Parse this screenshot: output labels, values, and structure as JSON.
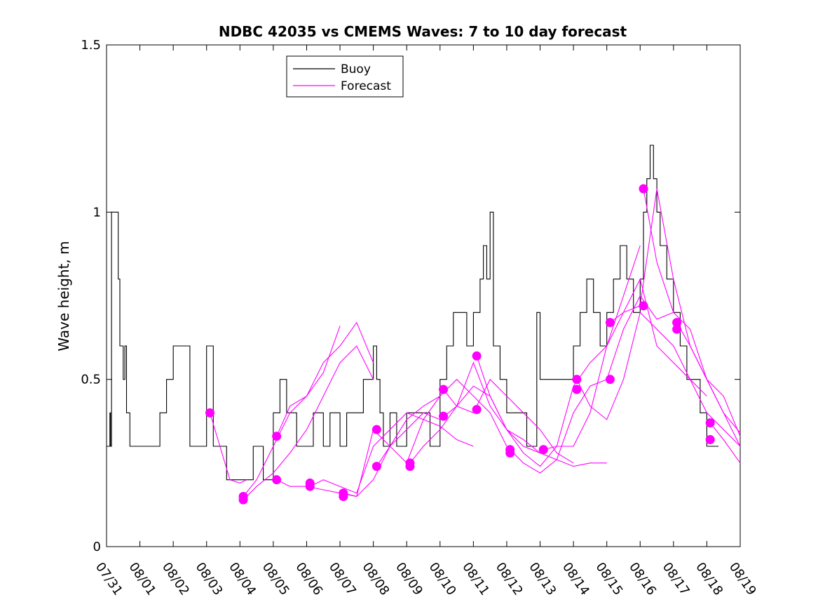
{
  "chart_data": {
    "type": "line",
    "title": "NDBC 42035 vs CMEMS Waves: 7 to 10 day forecast",
    "xlabel": "",
    "ylabel": "Wave height, m",
    "xlim": [
      0,
      19
    ],
    "ylim": [
      0,
      1.5
    ],
    "x_tick_labels": [
      "07/31",
      "08/01",
      "08/02",
      "08/03",
      "08/04",
      "08/05",
      "08/06",
      "08/07",
      "08/08",
      "08/09",
      "08/10",
      "08/11",
      "08/12",
      "08/13",
      "08/14",
      "08/15",
      "08/16",
      "08/17",
      "08/18",
      "08/19"
    ],
    "y_ticks": [
      0,
      0.5,
      1,
      1.5
    ],
    "y_tick_labels": [
      "0",
      "0.5",
      "1",
      "1.5"
    ],
    "legend": {
      "location": "top-center",
      "entries": [
        {
          "name": "Buoy",
          "color": "#000000"
        },
        {
          "name": "Forecast",
          "color": "#ff00ff"
        }
      ]
    },
    "series": [
      {
        "name": "Buoy",
        "color": "#000000",
        "x": [
          0.0,
          0.08,
          0.1,
          0.12,
          0.15,
          0.3,
          0.35,
          0.4,
          0.45,
          0.5,
          0.55,
          0.6,
          0.65,
          0.7,
          0.75,
          0.8,
          0.9,
          1.0,
          1.5,
          1.6,
          1.8,
          2.0,
          2.5,
          2.7,
          2.85,
          3.0,
          3.2,
          3.4,
          3.6,
          4.0,
          4.2,
          4.4,
          4.7,
          4.9,
          5.0,
          5.2,
          5.4,
          5.7,
          6.0,
          6.2,
          6.5,
          6.7,
          6.9,
          7.0,
          7.2,
          7.5,
          7.7,
          7.9,
          8.0,
          8.1,
          8.2,
          8.3,
          8.5,
          8.7,
          9.0,
          9.3,
          9.5,
          9.7,
          9.9,
          10.0,
          10.2,
          10.4,
          10.6,
          10.8,
          11.0,
          11.2,
          11.3,
          11.4,
          11.5,
          11.6,
          11.7,
          11.8,
          12.0,
          12.3,
          12.6,
          12.8,
          12.9,
          13.0,
          13.3,
          13.5,
          13.8,
          14.0,
          14.2,
          14.4,
          14.6,
          14.8,
          15.0,
          15.2,
          15.4,
          15.6,
          15.8,
          16.0,
          16.1,
          16.2,
          16.3,
          16.4,
          16.5,
          16.6,
          16.8,
          17.0,
          17.2,
          17.4,
          17.6,
          17.8,
          18.0,
          18.2
        ],
        "y": [
          0.3,
          0.3,
          0.4,
          0.3,
          1.0,
          1.0,
          0.8,
          0.6,
          0.6,
          0.5,
          0.6,
          0.4,
          0.4,
          0.3,
          0.3,
          0.3,
          0.3,
          0.3,
          0.3,
          0.4,
          0.5,
          0.6,
          0.3,
          0.3,
          0.3,
          0.6,
          0.3,
          0.3,
          0.2,
          0.2,
          0.2,
          0.3,
          0.2,
          0.2,
          0.4,
          0.5,
          0.4,
          0.3,
          0.3,
          0.4,
          0.3,
          0.4,
          0.4,
          0.3,
          0.4,
          0.4,
          0.5,
          0.5,
          0.6,
          0.5,
          0.4,
          0.3,
          0.4,
          0.3,
          0.4,
          0.4,
          0.4,
          0.3,
          0.3,
          0.5,
          0.6,
          0.7,
          0.7,
          0.6,
          0.7,
          0.8,
          0.9,
          0.8,
          1.0,
          0.6,
          0.6,
          0.5,
          0.4,
          0.4,
          0.3,
          0.3,
          0.7,
          0.5,
          0.5,
          0.5,
          0.5,
          0.6,
          0.7,
          0.8,
          0.7,
          0.6,
          0.7,
          0.8,
          0.9,
          0.8,
          0.7,
          0.8,
          1.0,
          1.1,
          1.2,
          1.1,
          1.0,
          0.9,
          0.8,
          0.7,
          0.6,
          0.5,
          0.5,
          0.4,
          0.3,
          0.3
        ]
      },
      {
        "name": "Forecast",
        "color": "#ff00ff",
        "x": [
          3.1,
          3.4,
          3.7,
          4.0,
          4.2
        ],
        "y": [
          0.4,
          0.3,
          0.2,
          0.19,
          0.2
        ]
      },
      {
        "name": "Forecast",
        "color": "#ff00ff",
        "x": [
          4.1,
          4.5,
          5.0,
          5.5,
          6.0,
          6.5,
          7.0,
          7.5,
          8.0
        ],
        "y": [
          0.15,
          0.2,
          0.3,
          0.4,
          0.45,
          0.55,
          0.6,
          0.67,
          0.55
        ]
      },
      {
        "name": "Forecast",
        "color": "#ff00ff",
        "x": [
          4.1,
          4.5,
          5.0,
          5.5,
          6.0,
          6.5,
          7.0,
          7.5,
          8.0
        ],
        "y": [
          0.14,
          0.18,
          0.22,
          0.28,
          0.35,
          0.45,
          0.55,
          0.6,
          0.5
        ]
      },
      {
        "name": "Forecast",
        "color": "#ff00ff",
        "x": [
          5.1,
          5.5,
          6.0,
          6.5,
          7.0
        ],
        "y": [
          0.33,
          0.42,
          0.45,
          0.52,
          0.66
        ]
      },
      {
        "name": "Forecast",
        "color": "#ff00ff",
        "x": [
          5.1,
          5.5,
          6.0,
          6.5,
          7.0,
          7.5,
          8.0,
          8.5,
          9.0,
          9.5,
          10.0
        ],
        "y": [
          0.2,
          0.18,
          0.18,
          0.17,
          0.16,
          0.15,
          0.2,
          0.3,
          0.38,
          0.42,
          0.45
        ]
      },
      {
        "name": "Forecast",
        "color": "#ff00ff",
        "x": [
          6.1,
          6.5,
          7.0,
          7.5,
          8.0,
          8.5,
          9.0,
          9.5,
          10.0,
          10.5,
          11.0
        ],
        "y": [
          0.18,
          0.2,
          0.18,
          0.16,
          0.3,
          0.35,
          0.4,
          0.38,
          0.36,
          0.32,
          0.3
        ]
      },
      {
        "name": "Forecast",
        "color": "#ff00ff",
        "x": [
          7.1,
          7.5,
          8.0,
          8.5,
          9.0,
          9.5,
          10.0,
          10.5,
          11.0,
          11.5,
          12.0
        ],
        "y": [
          0.16,
          0.15,
          0.35,
          0.3,
          0.25,
          0.38,
          0.45,
          0.5,
          0.45,
          0.4,
          0.3
        ]
      },
      {
        "name": "Forecast",
        "color": "#ff00ff",
        "x": [
          8.1,
          8.5,
          9.0,
          9.5,
          10.0,
          10.5,
          11.0,
          11.5,
          12.0,
          12.5,
          13.0
        ],
        "y": [
          0.24,
          0.3,
          0.35,
          0.4,
          0.38,
          0.42,
          0.48,
          0.45,
          0.35,
          0.3,
          0.28
        ]
      },
      {
        "name": "Forecast",
        "color": "#ff00ff",
        "x": [
          9.1,
          9.5,
          10.0,
          10.5,
          11.0,
          11.5,
          12.0,
          12.5,
          13.0,
          13.5,
          14.0
        ],
        "y": [
          0.25,
          0.3,
          0.35,
          0.42,
          0.4,
          0.5,
          0.45,
          0.4,
          0.35,
          0.28,
          0.25
        ]
      },
      {
        "name": "Forecast",
        "color": "#ff00ff",
        "x": [
          10.1,
          10.5,
          11.0,
          11.5,
          12.0,
          12.5,
          13.0,
          13.5,
          14.0,
          14.5,
          15.0
        ],
        "y": [
          0.47,
          0.42,
          0.55,
          0.42,
          0.35,
          0.32,
          0.28,
          0.26,
          0.24,
          0.25,
          0.25
        ]
      },
      {
        "name": "Forecast",
        "color": "#ff00ff",
        "x": [
          11.1,
          11.5,
          12.0,
          12.5,
          13.0,
          13.5,
          14.0,
          14.5,
          15.0,
          15.5,
          16.0
        ],
        "y": [
          0.57,
          0.45,
          0.35,
          0.28,
          0.24,
          0.3,
          0.48,
          0.55,
          0.6,
          0.75,
          0.9
        ]
      },
      {
        "name": "Forecast",
        "color": "#ff00ff",
        "x": [
          12.1,
          12.5,
          13.0,
          13.5,
          14.0,
          14.5,
          15.0,
          15.5,
          16.0,
          16.5,
          17.0
        ],
        "y": [
          0.29,
          0.25,
          0.22,
          0.26,
          0.4,
          0.48,
          0.5,
          0.65,
          0.75,
          0.68,
          0.7
        ]
      },
      {
        "name": "Forecast",
        "color": "#ff00ff",
        "x": [
          13.1,
          13.5,
          14.0,
          14.5,
          15.0,
          15.5,
          16.0,
          16.5,
          17.0,
          17.5,
          18.0
        ],
        "y": [
          0.29,
          0.3,
          0.3,
          0.4,
          0.6,
          0.7,
          0.8,
          0.6,
          0.55,
          0.5,
          0.45
        ]
      },
      {
        "name": "Forecast",
        "color": "#ff00ff",
        "x": [
          14.1,
          14.5,
          15.0,
          15.5,
          16.0,
          16.5,
          17.0,
          17.5,
          18.0,
          18.5,
          19.0
        ],
        "y": [
          0.5,
          0.42,
          0.38,
          0.5,
          0.7,
          0.65,
          0.6,
          0.5,
          0.4,
          0.35,
          0.3
        ]
      },
      {
        "name": "Forecast",
        "color": "#ff00ff",
        "x": [
          15.1,
          15.5,
          16.0,
          16.5,
          17.0,
          17.5,
          18.0,
          18.5,
          19.0
        ],
        "y": [
          0.67,
          0.7,
          0.72,
          1.07,
          0.8,
          0.6,
          0.5,
          0.4,
          0.34
        ]
      },
      {
        "name": "Forecast",
        "color": "#ff00ff",
        "x": [
          16.1,
          16.5,
          17.0,
          17.5,
          18.0,
          18.5,
          19.0
        ],
        "y": [
          1.07,
          0.85,
          0.7,
          0.65,
          0.5,
          0.45,
          0.33
        ]
      },
      {
        "name": "Forecast",
        "color": "#ff00ff",
        "x": [
          17.1,
          17.5,
          18.0,
          18.5,
          19.0
        ],
        "y": [
          0.67,
          0.6,
          0.5,
          0.4,
          0.3
        ]
      },
      {
        "name": "Forecast",
        "color": "#ff00ff",
        "x": [
          18.1,
          18.5,
          19.0
        ],
        "y": [
          0.37,
          0.32,
          0.25
        ]
      }
    ],
    "forecast_points": {
      "x": [
        3.1,
        4.1,
        4.1,
        5.1,
        5.1,
        6.1,
        6.1,
        7.1,
        7.1,
        8.1,
        8.1,
        9.1,
        9.1,
        10.1,
        10.1,
        11.1,
        11.1,
        12.1,
        12.1,
        13.1,
        14.1,
        14.1,
        15.1,
        15.1,
        16.1,
        16.1,
        17.1,
        17.1,
        18.1,
        18.1
      ],
      "y": [
        0.4,
        0.15,
        0.14,
        0.33,
        0.2,
        0.19,
        0.18,
        0.16,
        0.15,
        0.35,
        0.24,
        0.25,
        0.24,
        0.47,
        0.39,
        0.57,
        0.41,
        0.29,
        0.28,
        0.29,
        0.5,
        0.47,
        0.67,
        0.5,
        1.07,
        0.72,
        0.67,
        0.65,
        0.37,
        0.32
      ]
    }
  }
}
